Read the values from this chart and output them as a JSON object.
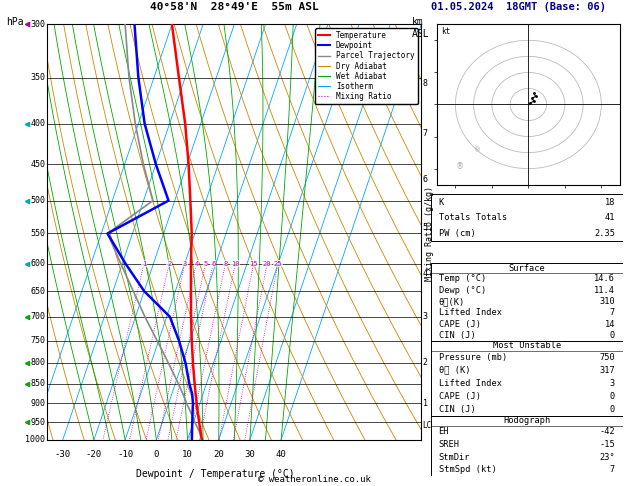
{
  "title_left": "40°58'N  28°49'E  55m ASL",
  "title_right": "01.05.2024  18GMT (Base: 06)",
  "xlabel": "Dewpoint / Temperature (°C)",
  "pressure_levels": [
    300,
    350,
    400,
    450,
    500,
    550,
    600,
    650,
    700,
    750,
    800,
    850,
    900,
    950,
    1000
  ],
  "temp_data": {
    "pressure": [
      1000,
      975,
      950,
      925,
      900,
      875,
      850,
      800,
      750,
      700,
      650,
      600,
      550,
      500,
      450,
      400,
      350,
      300
    ],
    "temp": [
      14.6,
      13.2,
      11.8,
      10.4,
      9.0,
      7.6,
      6.2,
      3.4,
      0.6,
      -2.2,
      -5.0,
      -8.0,
      -11.0,
      -15.0,
      -19.5,
      -25.0,
      -32.0,
      -40.0
    ]
  },
  "dewp_data": {
    "pressure": [
      1000,
      975,
      950,
      925,
      900,
      875,
      850,
      800,
      750,
      700,
      650,
      600,
      550,
      500,
      450,
      400,
      350,
      300
    ],
    "dewp": [
      11.4,
      10.5,
      9.6,
      8.7,
      7.8,
      6.5,
      4.5,
      1.0,
      -3.5,
      -9.0,
      -20.0,
      -29.0,
      -38.0,
      -22.0,
      -30.0,
      -38.0,
      -45.0,
      -52.0
    ]
  },
  "parcel_data": {
    "pressure": [
      1000,
      975,
      950,
      925,
      900,
      875,
      850,
      800,
      750,
      700,
      650,
      600,
      550,
      500,
      450,
      400,
      350,
      300
    ],
    "temp": [
      14.6,
      12.8,
      10.4,
      8.2,
      5.8,
      3.5,
      1.0,
      -4.5,
      -10.5,
      -17.0,
      -23.5,
      -30.5,
      -38.0,
      -27.0,
      -34.0,
      -41.0,
      -48.0,
      -55.0
    ]
  },
  "lcl_pressure": 960,
  "mixing_ratio_values": [
    1,
    2,
    3,
    4,
    5,
    6,
    8,
    10,
    15,
    20,
    25
  ],
  "temp_color": "#ff0000",
  "dewp_color": "#0000ff",
  "parcel_color": "#888888",
  "dry_adiabat_color": "#cc8800",
  "wet_adiabat_color": "#00aa00",
  "isotherm_color": "#00aaff",
  "mixing_ratio_color": "#cc00cc",
  "background": "#ffffff",
  "T_min": -35,
  "T_max": 40,
  "p_min": 300,
  "p_max": 1000,
  "skew_factor": 45,
  "km_ticks": {
    "8": 356,
    "7": 412,
    "6": 470,
    "5": 540,
    "4": 618,
    "3": 700,
    "2": 800,
    "1": 900
  },
  "stats": {
    "K": 18,
    "Totals_Totals": 41,
    "PW_cm": 2.35,
    "Surface_Temp": 14.6,
    "Surface_Dewp": 11.4,
    "theta_e": 310,
    "Lifted_Index": 7,
    "CAPE": 14,
    "CIN": 0,
    "MU_Pressure": 750,
    "MU_theta_e": 317,
    "MU_LI": 3,
    "MU_CAPE": 0,
    "MU_CIN": 0,
    "EH": -42,
    "SREH": -15,
    "StmDir": 23,
    "StmSpd": 7
  },
  "copyright": "© weatheronline.co.uk"
}
